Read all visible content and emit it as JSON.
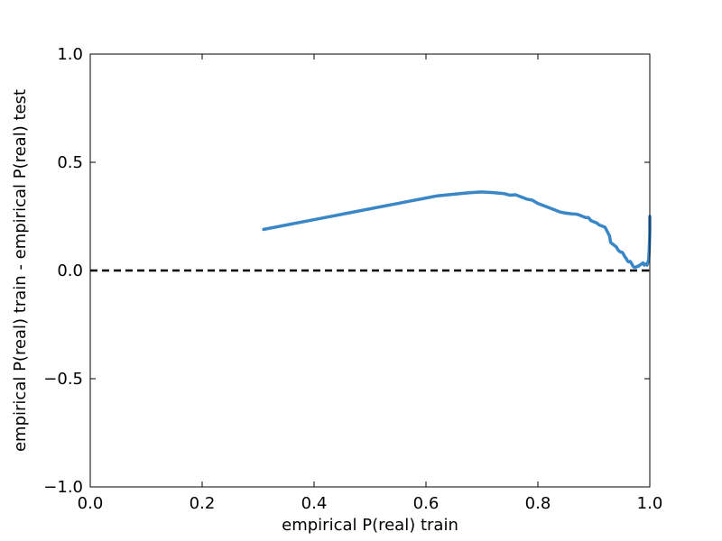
{
  "chart_data": {
    "type": "line",
    "title": "",
    "xlabel": "empirical P(real) train",
    "ylabel": "empirical P(real) train - empirical P(real) test",
    "xlim": [
      0.0,
      1.0
    ],
    "ylim": [
      -1.0,
      1.0
    ],
    "x_ticks": [
      0.0,
      0.2,
      0.4,
      0.6,
      0.8,
      1.0
    ],
    "x_tick_labels": [
      "0.0",
      "0.2",
      "0.4",
      "0.6",
      "0.8",
      "1.0"
    ],
    "y_ticks": [
      -1.0,
      -0.5,
      0.0,
      0.5,
      1.0
    ],
    "y_tick_labels": [
      "−1.0",
      "−0.5",
      "0.0",
      "0.5",
      "1.0"
    ],
    "grid": false,
    "reference_line": {
      "y": 0.0,
      "style": "dashed",
      "color": "#000000"
    },
    "series": [
      {
        "color": "#3a87c8",
        "x": [
          0.31,
          0.33,
          0.36,
          0.39,
          0.42,
          0.45,
          0.48,
          0.51,
          0.54,
          0.57,
          0.6,
          0.62,
          0.64,
          0.66,
          0.68,
          0.7,
          0.72,
          0.74,
          0.75,
          0.76,
          0.77,
          0.78,
          0.79,
          0.8,
          0.81,
          0.82,
          0.83,
          0.84,
          0.85,
          0.86,
          0.87,
          0.875,
          0.88,
          0.885,
          0.89,
          0.895,
          0.9,
          0.905,
          0.91,
          0.915,
          0.92,
          0.925,
          0.928,
          0.93,
          0.932,
          0.935,
          0.937,
          0.94,
          0.942,
          0.945,
          0.948,
          0.95,
          0.952,
          0.955,
          0.958,
          0.96,
          0.962,
          0.965,
          0.968,
          0.97,
          0.972,
          0.975,
          0.978,
          0.98,
          0.982,
          0.985,
          0.988,
          0.99,
          0.992,
          0.995,
          0.998,
          0.999,
          1.0,
          1.0
        ],
        "y": [
          0.19,
          0.2,
          0.215,
          0.23,
          0.245,
          0.26,
          0.275,
          0.29,
          0.305,
          0.32,
          0.335,
          0.345,
          0.35,
          0.355,
          0.36,
          0.363,
          0.36,
          0.355,
          0.348,
          0.35,
          0.34,
          0.33,
          0.325,
          0.31,
          0.3,
          0.29,
          0.28,
          0.27,
          0.265,
          0.262,
          0.26,
          0.255,
          0.25,
          0.245,
          0.245,
          0.23,
          0.225,
          0.22,
          0.21,
          0.205,
          0.2,
          0.175,
          0.16,
          0.13,
          0.125,
          0.12,
          0.115,
          0.11,
          0.1,
          0.09,
          0.085,
          0.085,
          0.08,
          0.065,
          0.055,
          0.045,
          0.04,
          0.042,
          0.03,
          0.02,
          0.015,
          0.015,
          0.02,
          0.02,
          0.025,
          0.03,
          0.035,
          0.025,
          0.03,
          0.025,
          0.05,
          0.1,
          0.18,
          0.25
        ]
      }
    ]
  }
}
